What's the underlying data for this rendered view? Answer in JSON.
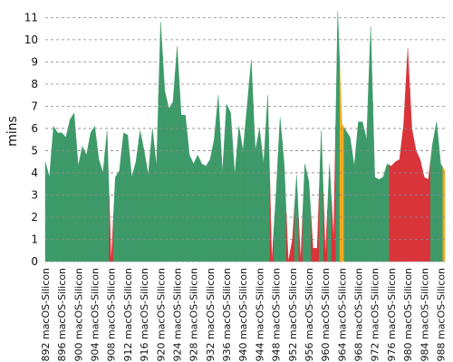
{
  "chart_data": {
    "type": "area",
    "y_label": "mins",
    "categories": [
      "#892 macOS-Silicon",
      null,
      null,
      null,
      "#896 macOS-Silicon",
      null,
      null,
      null,
      "#900 macOS-Silicon",
      null,
      null,
      null,
      "#904 macOS-Silicon",
      null,
      null,
      null,
      "#908 macOS-Silicon",
      null,
      null,
      null,
      "#912 macOS-Silicon",
      null,
      null,
      null,
      "#916 macOS-Silicon",
      null,
      null,
      null,
      "#920 macOS-Silicon",
      null,
      null,
      null,
      "#924 macOS-Silicon",
      null,
      null,
      null,
      "#928 macOS-Silicon",
      null,
      null,
      null,
      "#932 macOS-Silicon",
      null,
      null,
      null,
      "#936 macOS-Silicon",
      null,
      null,
      null,
      "#940 macOS-Silicon",
      null,
      null,
      null,
      "#944 macOS-Silicon",
      null,
      null,
      null,
      "#948 macOS-Silicon",
      null,
      null,
      null,
      "#952 macOS-Silicon",
      null,
      null,
      null,
      "#956 macOS-Silicon",
      null,
      null,
      null,
      "#960 macOS-Silicon",
      null,
      null,
      null,
      "#964 macOS-Silicon",
      null,
      null,
      null,
      "#968 macOS-Silicon",
      null,
      null,
      null,
      "#972 macOS-Silicon",
      null,
      null,
      null,
      "#976 macOS-Silicon",
      null,
      null,
      null,
      "#980 macOS-Silicon",
      null,
      null,
      null,
      "#984 macOS-Silicon",
      null,
      null,
      null,
      "#988 macOS-Silicon",
      null
    ],
    "values": [
      4.5,
      3.8,
      6.1,
      5.8,
      5.8,
      5.6,
      6.4,
      6.7,
      4.3,
      5.2,
      4.8,
      5.8,
      6.1,
      4.6,
      4.0,
      5.9,
      0,
      3.8,
      4.1,
      5.8,
      5.7,
      3.8,
      4.5,
      5.9,
      5.0,
      3.9,
      6.0,
      4.3,
      10.8,
      7.7,
      6.9,
      7.2,
      9.7,
      6.6,
      6.6,
      4.8,
      4.4,
      4.8,
      4.4,
      4.3,
      4.6,
      5.5,
      7.5,
      4.0,
      7.1,
      6.7,
      3.9,
      6.1,
      5.0,
      7.0,
      9.1,
      5.0,
      6.0,
      4.4,
      7.5,
      0,
      3.0,
      6.5,
      4.4,
      0,
      1.0,
      3.9,
      0,
      4.4,
      3.6,
      0.6,
      0.6,
      5.9,
      0.3,
      4.4,
      1.0,
      11.3,
      6.2,
      5.9,
      5.6,
      4.3,
      6.3,
      6.3,
      5.5,
      10.6,
      3.8,
      3.7,
      3.8,
      4.4,
      4.3,
      4.5,
      4.6,
      6.2,
      9.6,
      6.0,
      5.0,
      4.6,
      3.8,
      3.7,
      5.3,
      6.3,
      4.4,
      4.1
    ],
    "point_colors": [
      "g",
      "g",
      "g",
      "g",
      "g",
      "g",
      "g",
      "g",
      "g",
      "g",
      "g",
      "g",
      "g",
      "g",
      "g",
      "g",
      "r",
      "g",
      "g",
      "g",
      "g",
      "g",
      "g",
      "g",
      "g",
      "g",
      "g",
      "g",
      "g",
      "g",
      "g",
      "g",
      "g",
      "g",
      "g",
      "g",
      "g",
      "g",
      "g",
      "g",
      "g",
      "g",
      "g",
      "g",
      "g",
      "g",
      "g",
      "g",
      "g",
      "g",
      "g",
      "g",
      "g",
      "g",
      "g",
      "r",
      "g",
      "g",
      "g",
      "r",
      "r",
      "g",
      "r",
      "g",
      "g",
      "r",
      "r",
      "g",
      "r",
      "g",
      "r",
      "g",
      "o",
      "g",
      "g",
      "g",
      "g",
      "g",
      "g",
      "g",
      "g",
      "g",
      "g",
      "g",
      "r",
      "r",
      "r",
      "r",
      "r",
      "r",
      "r",
      "r",
      "r",
      "r",
      "g",
      "g",
      "g",
      "o"
    ],
    "palette": {
      "g": "#3d9a68",
      "r": "#d8343a",
      "o": "#f2a81d"
    },
    "ylim": [
      0,
      11.3
    ],
    "yticks": [
      0,
      1,
      2,
      3,
      4,
      5,
      6,
      7,
      8,
      9,
      10,
      11
    ],
    "grid": true
  }
}
